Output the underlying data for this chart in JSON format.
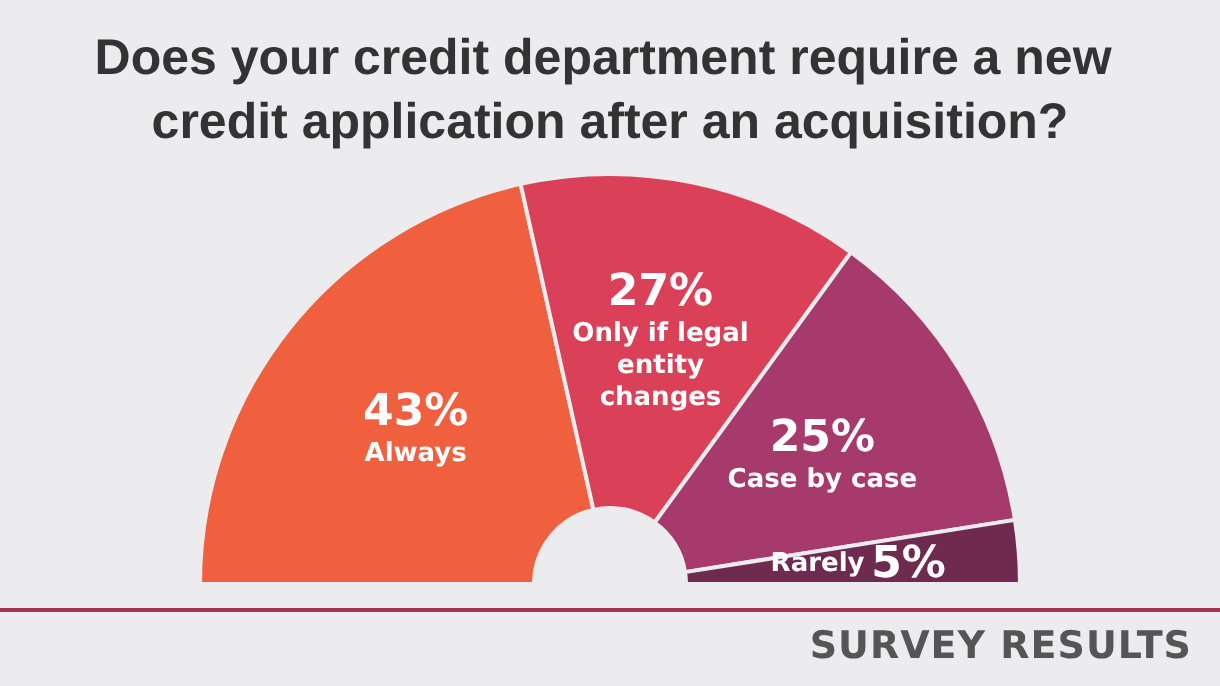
{
  "chart_data": {
    "type": "donut",
    "title": "Does your credit department require a new credit application after an acquisition?",
    "categories": [
      "Always",
      "Only if legal entity changes",
      "Case by case",
      "Rarely"
    ],
    "values": [
      43,
      27,
      25,
      5
    ],
    "colors": [
      "#f0603f",
      "#da4159",
      "#a73a6c",
      "#6f2a50"
    ],
    "value_labels": [
      "43%",
      "27%",
      "25%",
      "5%"
    ],
    "annotations": [
      "SURVEY RESULTS"
    ],
    "legend": false
  }
}
